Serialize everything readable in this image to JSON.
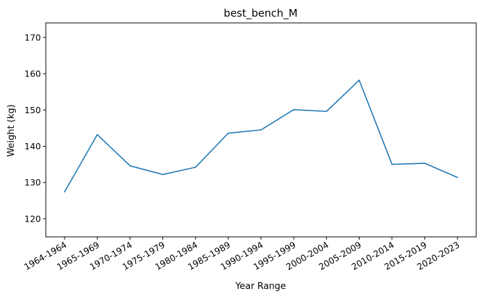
{
  "chart_data": {
    "type": "line",
    "title": "best_bench_M",
    "xlabel": "Year Range",
    "ylabel": "Weight (kg)",
    "categories": [
      "1964-1964",
      "1965-1969",
      "1970-1974",
      "1975-1979",
      "1980-1984",
      "1985-1989",
      "1990-1994",
      "1995-1999",
      "2000-2004",
      "2005-2009",
      "2010-2014",
      "2015-2019",
      "2020-2023"
    ],
    "series": [
      {
        "values": [
          127.4,
          143.2,
          134.6,
          132.2,
          134.2,
          143.6,
          144.5,
          150.1,
          149.6,
          158.2,
          135.0,
          135.3,
          131.4
        ],
        "color": "#1f77b4"
      }
    ],
    "ylim": [
      115,
      174
    ],
    "yticks": [
      120,
      130,
      140,
      150,
      160,
      170
    ],
    "grid": false
  }
}
